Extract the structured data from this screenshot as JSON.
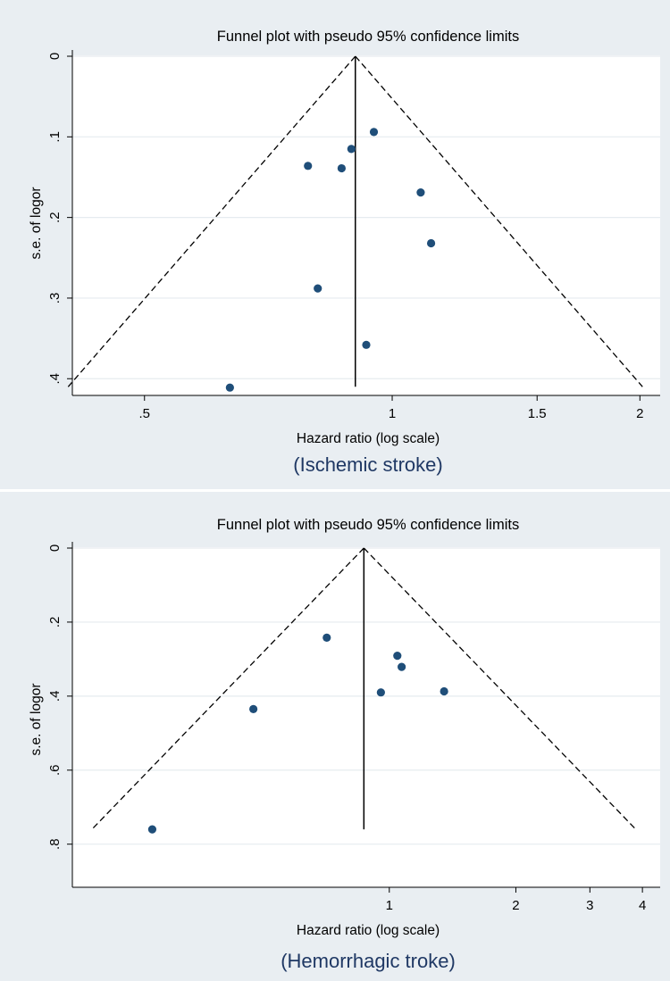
{
  "chart_data": [
    {
      "type": "scatter",
      "title": "Funnel plot with pseudo 95% confidence limits",
      "xlabel": "Hazard ratio (log scale)",
      "ylabel": "s.e. of logor",
      "caption": "(Ischemic stroke)",
      "x_scale": "log",
      "y_reversed": true,
      "xlim": [
        0.42,
        2.08
      ],
      "ylim": [
        0,
        0.413
      ],
      "xticks": [
        0.5,
        1,
        1.5,
        2
      ],
      "xtick_labels": [
        ".5",
        "1",
        "1.5",
        "2"
      ],
      "yticks": [
        0,
        0.1,
        0.2,
        0.3,
        0.4
      ],
      "ytick_labels": [
        "0",
        ".1",
        ".2",
        ".3",
        ".4"
      ],
      "pooled_estimate": 0.902,
      "ci_multiplier": 1.96,
      "max_se": 0.41,
      "grid": true,
      "points": [
        {
          "x": 0.95,
          "y": 0.094
        },
        {
          "x": 0.892,
          "y": 0.115
        },
        {
          "x": 0.79,
          "y": 0.136
        },
        {
          "x": 0.868,
          "y": 0.139
        },
        {
          "x": 1.083,
          "y": 0.169
        },
        {
          "x": 1.115,
          "y": 0.232
        },
        {
          "x": 0.812,
          "y": 0.288
        },
        {
          "x": 0.93,
          "y": 0.358
        },
        {
          "x": 0.635,
          "y": 0.411
        }
      ]
    },
    {
      "type": "scatter",
      "title": "Funnel plot with pseudo 95% confidence limits",
      "xlabel": "Hazard ratio (log scale)",
      "ylabel": "s.e. of logor",
      "caption": "(Hemorrhagic troke)",
      "x_scale": "log",
      "y_reversed": true,
      "xlim": [
        0.186,
        4.26
      ],
      "ylim": [
        0,
        0.82
      ],
      "xticks": [
        1,
        2,
        3,
        4
      ],
      "xtick_labels": [
        "1",
        "2",
        "3",
        "4"
      ],
      "yticks": [
        0,
        0.2,
        0.4,
        0.6,
        0.8
      ],
      "ytick_labels": [
        "0",
        ".2",
        ".4",
        ".6",
        ".8"
      ],
      "pooled_estimate": 0.87,
      "ci_multiplier": 1.96,
      "max_se": 0.76,
      "grid": true,
      "points": [
        {
          "x": 0.71,
          "y": 0.242
        },
        {
          "x": 1.045,
          "y": 0.291
        },
        {
          "x": 1.07,
          "y": 0.321
        },
        {
          "x": 0.955,
          "y": 0.39
        },
        {
          "x": 1.35,
          "y": 0.387
        },
        {
          "x": 0.475,
          "y": 0.435
        },
        {
          "x": 0.273,
          "y": 0.76
        }
      ]
    }
  ]
}
